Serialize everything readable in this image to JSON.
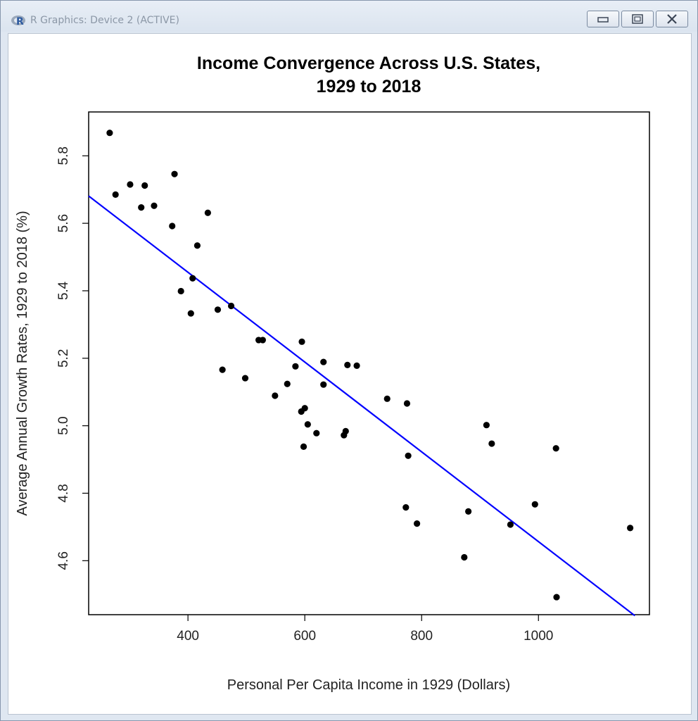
{
  "window": {
    "title": "R Graphics: Device 2 (ACTIVE)",
    "icon": "r-logo-icon",
    "buttons": [
      "minimize-icon",
      "restore-icon",
      "close-icon"
    ]
  },
  "chart_data": {
    "type": "scatter",
    "title_lines": [
      "Income Convergence Across U.S. States,",
      "1929 to 2018"
    ],
    "xlabel": "Personal Per Capita Income in 1929 (Dollars)",
    "ylabel": "Average Annual Growth Rates, 1929 to 2018 (%)",
    "xlim": [
      230,
      1190
    ],
    "ylim": [
      4.44,
      5.93
    ],
    "x_ticks": [
      400,
      600,
      800,
      1000
    ],
    "y_ticks": [
      4.6,
      4.8,
      5.0,
      5.2,
      5.4,
      5.6,
      5.8
    ],
    "x_tick_labels": [
      "400",
      "600",
      "800",
      "1000"
    ],
    "y_tick_labels": [
      "4.6",
      "4.8",
      "5.0",
      "5.2",
      "5.4",
      "5.6",
      "5.8"
    ],
    "grid": false,
    "point_color": "#000000",
    "series": [
      {
        "points": [
          [
            266,
            5.868
          ],
          [
            276,
            5.685
          ],
          [
            301,
            5.715
          ],
          [
            320,
            5.647
          ],
          [
            326,
            5.712
          ],
          [
            342,
            5.652
          ],
          [
            373,
            5.592
          ],
          [
            377,
            5.746
          ],
          [
            388,
            5.399
          ],
          [
            405,
            5.333
          ],
          [
            408,
            5.437
          ],
          [
            416,
            5.534
          ],
          [
            434,
            5.631
          ],
          [
            451,
            5.344
          ],
          [
            459,
            5.166
          ],
          [
            474,
            5.355
          ],
          [
            498,
            5.141
          ],
          [
            521,
            5.254
          ],
          [
            528,
            5.254
          ],
          [
            549,
            5.089
          ],
          [
            570,
            5.124
          ],
          [
            584,
            5.176
          ],
          [
            594,
            5.042
          ],
          [
            595,
            5.249
          ],
          [
            598,
            4.938
          ],
          [
            600,
            5.052
          ],
          [
            605,
            5.004
          ],
          [
            620,
            4.978
          ],
          [
            632,
            5.122
          ],
          [
            632,
            5.189
          ],
          [
            667,
            4.972
          ],
          [
            670,
            4.984
          ],
          [
            673,
            5.18
          ],
          [
            689,
            5.178
          ],
          [
            741,
            5.08
          ],
          [
            773,
            4.758
          ],
          [
            775,
            5.066
          ],
          [
            777,
            4.911
          ],
          [
            792,
            4.71
          ],
          [
            873,
            4.61
          ],
          [
            880,
            4.746
          ],
          [
            911,
            5.002
          ],
          [
            920,
            4.947
          ],
          [
            952,
            4.707
          ],
          [
            994,
            4.767
          ],
          [
            1030,
            4.933
          ],
          [
            1031,
            4.492
          ],
          [
            1157,
            4.697
          ]
        ]
      }
    ],
    "fit_line": {
      "color": "#0000ff",
      "x": [
        230,
        1165
      ],
      "y": [
        5.681,
        4.437
      ]
    }
  }
}
